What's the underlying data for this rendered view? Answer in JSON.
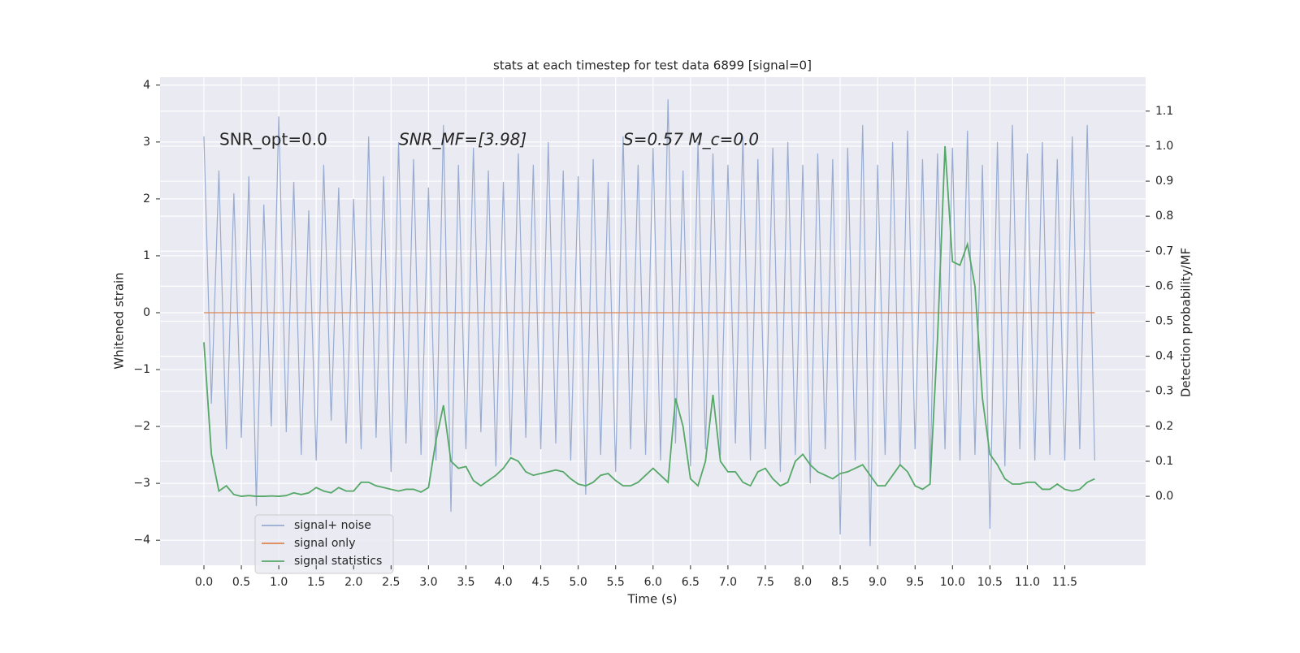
{
  "chart_data": {
    "type": "line",
    "title": "stats at each timestep for test data 6899 [signal=0]",
    "x_label": "Time (s)",
    "y_label": "Whitened strain",
    "y2_label": "Detection probability/MF",
    "annotations": [
      "SNR_opt=0.0",
      "SNR_MF=[3.98]",
      "S=0.57   M_c=0.0"
    ],
    "x": [
      0,
      0.1,
      0.2,
      0.3,
      0.4,
      0.5,
      0.6,
      0.7,
      0.8,
      0.9,
      1,
      1.1,
      1.2,
      1.3,
      1.4,
      1.5,
      1.6,
      1.7,
      1.8,
      1.9,
      2,
      2.1,
      2.2,
      2.3,
      2.4,
      2.5,
      2.6,
      2.7,
      2.8,
      2.9,
      3,
      3.1,
      3.2,
      3.3,
      3.4,
      3.5,
      3.6,
      3.7,
      3.8,
      3.9,
      4,
      4.1,
      4.2,
      4.3,
      4.4,
      4.5,
      4.6,
      4.7,
      4.8,
      4.9,
      5,
      5.1,
      5.2,
      5.3,
      5.4,
      5.5,
      5.6,
      5.7,
      5.8,
      5.9,
      6,
      6.1,
      6.2,
      6.3,
      6.4,
      6.5,
      6.6,
      6.7,
      6.8,
      6.9,
      7,
      7.1,
      7.2,
      7.3,
      7.4,
      7.5,
      7.6,
      7.7,
      7.8,
      7.9,
      8,
      8.1,
      8.2,
      8.3,
      8.4,
      8.5,
      8.6,
      8.7,
      8.8,
      8.9,
      9,
      9.1,
      9.2,
      9.3,
      9.4,
      9.5,
      9.6,
      9.7,
      9.8,
      9.9,
      10,
      10.1,
      10.2,
      10.3,
      10.4,
      10.5,
      10.6,
      10.7,
      10.8,
      10.9,
      11,
      11.1,
      11.2,
      11.3,
      11.4,
      11.5,
      11.6,
      11.7,
      11.8,
      11.9
    ],
    "series": [
      {
        "name": "signal+ noise",
        "color": "#98abd0",
        "values": [
          3.1,
          -1.6,
          2.5,
          -2.4,
          2.1,
          -2.2,
          2.4,
          -3.4,
          1.9,
          -2.0,
          3.45,
          -2.1,
          2.3,
          -2.5,
          1.8,
          -2.6,
          2.6,
          -1.9,
          2.2,
          -2.3,
          2.0,
          -2.4,
          3.1,
          -2.2,
          2.4,
          -2.8,
          3.0,
          -2.3,
          2.7,
          -2.5,
          2.2,
          -2.6,
          3.3,
          -3.5,
          2.6,
          -2.4,
          2.9,
          -2.1,
          2.5,
          -2.7,
          2.3,
          -2.5,
          2.8,
          -2.2,
          2.6,
          -2.4,
          3.0,
          -2.3,
          2.5,
          -2.6,
          2.4,
          -3.2,
          2.7,
          -2.5,
          2.3,
          -2.8,
          3.1,
          -2.4,
          2.6,
          -2.5,
          2.9,
          -2.6,
          3.75,
          -2.3,
          2.5,
          -2.7,
          3.0,
          -2.4,
          2.8,
          -2.5,
          2.6,
          -2.3,
          3.1,
          -2.6,
          2.7,
          -2.4,
          2.9,
          -2.8,
          3.0,
          -2.5,
          2.6,
          -3.0,
          2.8,
          -2.4,
          2.7,
          -3.9,
          2.9,
          -2.6,
          3.3,
          -4.1,
          2.6,
          -2.5,
          3.0,
          -2.7,
          3.2,
          -2.4,
          2.7,
          -2.9,
          2.8,
          -2.4,
          2.9,
          -2.6,
          3.2,
          -2.5,
          2.6,
          -3.8,
          3.0,
          -2.7,
          3.3,
          -2.4,
          2.8,
          -2.6,
          3.0,
          -2.5,
          2.7,
          -2.6,
          3.1,
          -2.4,
          3.3,
          -2.6
        ]
      },
      {
        "name": "signal only",
        "color": "#dd8452",
        "values": [
          0,
          0,
          0,
          0,
          0,
          0,
          0,
          0,
          0,
          0,
          0,
          0,
          0,
          0,
          0,
          0,
          0,
          0,
          0,
          0,
          0,
          0,
          0,
          0,
          0,
          0,
          0,
          0,
          0,
          0,
          0,
          0,
          0,
          0,
          0,
          0,
          0,
          0,
          0,
          0,
          0,
          0,
          0,
          0,
          0,
          0,
          0,
          0,
          0,
          0,
          0,
          0,
          0,
          0,
          0,
          0,
          0,
          0,
          0,
          0,
          0,
          0,
          0,
          0,
          0,
          0,
          0,
          0,
          0,
          0,
          0,
          0,
          0,
          0,
          0,
          0,
          0,
          0,
          0,
          0,
          0,
          0,
          0,
          0,
          0,
          0,
          0,
          0,
          0,
          0,
          0,
          0,
          0,
          0,
          0,
          0,
          0,
          0,
          0,
          0,
          0,
          0,
          0,
          0,
          0,
          0,
          0,
          0,
          0,
          0,
          0,
          0,
          0,
          0,
          0,
          0,
          0,
          0,
          0,
          0
        ]
      },
      {
        "name": "signal statistics",
        "color": "#55a868",
        "axis": "y2",
        "values": [
          0.44,
          0.12,
          0.015,
          0.03,
          0.005,
          0.0,
          0.002,
          0.0,
          0.0,
          0.001,
          0.0,
          0.002,
          0.01,
          0.005,
          0.01,
          0.025,
          0.015,
          0.01,
          0.025,
          0.015,
          0.015,
          0.04,
          0.04,
          0.03,
          0.025,
          0.02,
          0.015,
          0.02,
          0.02,
          0.012,
          0.025,
          0.16,
          0.26,
          0.1,
          0.08,
          0.085,
          0.045,
          0.03,
          0.045,
          0.06,
          0.08,
          0.11,
          0.1,
          0.07,
          0.06,
          0.065,
          0.07,
          0.075,
          0.07,
          0.05,
          0.035,
          0.03,
          0.04,
          0.06,
          0.065,
          0.045,
          0.03,
          0.03,
          0.04,
          0.06,
          0.08,
          0.06,
          0.04,
          0.28,
          0.2,
          0.05,
          0.03,
          0.1,
          0.29,
          0.1,
          0.07,
          0.07,
          0.04,
          0.03,
          0.07,
          0.08,
          0.05,
          0.03,
          0.04,
          0.1,
          0.12,
          0.09,
          0.07,
          0.06,
          0.05,
          0.065,
          0.07,
          0.08,
          0.09,
          0.06,
          0.03,
          0.03,
          0.06,
          0.09,
          0.07,
          0.03,
          0.02,
          0.035,
          0.45,
          1.0,
          0.67,
          0.66,
          0.72,
          0.6,
          0.28,
          0.12,
          0.09,
          0.05,
          0.035,
          0.035,
          0.04,
          0.04,
          0.02,
          0.02,
          0.035,
          0.02,
          0.015,
          0.02,
          0.04,
          0.05
        ]
      }
    ],
    "xlim": [
      -0.586,
      12.58
    ],
    "ylim": [
      -4.44,
      4.14
    ],
    "y2lim": [
      -0.197,
      1.197
    ],
    "xticks": [
      {
        "value": 0,
        "label": "0.0"
      },
      0.5,
      {
        "value": 1,
        "label": "1.0"
      },
      1.5,
      {
        "value": 2,
        "label": "2.0"
      },
      2.5,
      {
        "value": 3,
        "label": "3.0"
      },
      3.5,
      {
        "value": 4,
        "label": "4.0"
      },
      4.5,
      {
        "value": 5,
        "label": "5.0"
      },
      5.5,
      {
        "value": 6,
        "label": "6.0"
      },
      6.5,
      {
        "value": 7,
        "label": "7.0"
      },
      7.5,
      {
        "value": 8,
        "label": "8.0"
      },
      8.5,
      {
        "value": 9,
        "label": "9.0"
      },
      9.5,
      {
        "value": 10,
        "label": "10.0"
      },
      10.5,
      {
        "value": 11,
        "label": "11.0"
      },
      11.5
    ],
    "yticks": [
      {
        "value": -4,
        "label": "−4"
      },
      {
        "value": -3,
        "label": "−3"
      },
      {
        "value": -2,
        "label": "−2"
      },
      {
        "value": -1,
        "label": "−1"
      },
      0,
      1,
      2,
      3,
      4
    ],
    "y2ticks": [
      {
        "value": 0,
        "label": "0.0"
      },
      0.1,
      0.2,
      0.3,
      0.4,
      0.5,
      0.6,
      0.7,
      0.8,
      0.9,
      {
        "value": 1,
        "label": "1.0"
      },
      1.1
    ],
    "grid": true,
    "legend": "lower left"
  }
}
